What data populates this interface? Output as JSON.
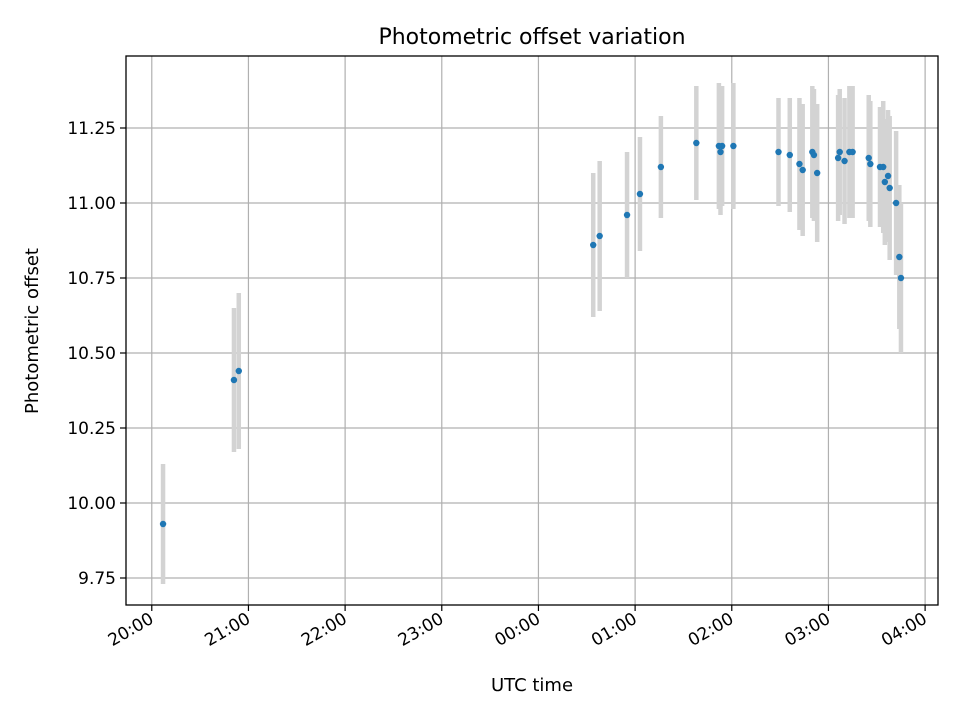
{
  "chart_data": {
    "type": "scatter",
    "title": "Photometric offset variation",
    "xlabel": "UTC time",
    "ylabel": "Photometric offset",
    "grid": true,
    "colors": {
      "point": "#1f77b4",
      "errorbar": "#d3d3d3"
    },
    "x_tick_labels": [
      "20:00",
      "21:00",
      "22:00",
      "23:00",
      "00:00",
      "01:00",
      "02:00",
      "03:00",
      "04:00"
    ],
    "y_tick_labels": [
      "9.75",
      "10.00",
      "10.25",
      "10.50",
      "10.75",
      "11.00",
      "11.25"
    ],
    "xlim": [
      "19:44",
      "04:08"
    ],
    "ylim": [
      9.66,
      11.49
    ],
    "points": [
      {
        "t": "20:07",
        "y": 9.93,
        "err": 0.2
      },
      {
        "t": "20:51",
        "y": 10.41,
        "err": 0.24
      },
      {
        "t": "20:54",
        "y": 10.44,
        "err": 0.26
      },
      {
        "t": "00:34",
        "y": 10.86,
        "err": 0.24
      },
      {
        "t": "00:38",
        "y": 10.89,
        "err": 0.25
      },
      {
        "t": "00:55",
        "y": 10.96,
        "err": 0.21
      },
      {
        "t": "01:03",
        "y": 11.03,
        "err": 0.19
      },
      {
        "t": "01:16",
        "y": 11.12,
        "err": 0.17
      },
      {
        "t": "01:38",
        "y": 11.2,
        "err": 0.19
      },
      {
        "t": "01:52",
        "y": 11.19,
        "err": 0.21
      },
      {
        "t": "01:53",
        "y": 11.17,
        "err": 0.21
      },
      {
        "t": "01:54",
        "y": 11.19,
        "err": 0.2
      },
      {
        "t": "02:01",
        "y": 11.19,
        "err": 0.21
      },
      {
        "t": "02:29",
        "y": 11.17,
        "err": 0.18
      },
      {
        "t": "02:36",
        "y": 11.16,
        "err": 0.19
      },
      {
        "t": "02:42",
        "y": 11.13,
        "err": 0.22
      },
      {
        "t": "02:44",
        "y": 11.11,
        "err": 0.22
      },
      {
        "t": "02:50",
        "y": 11.17,
        "err": 0.22
      },
      {
        "t": "02:51",
        "y": 11.16,
        "err": 0.22
      },
      {
        "t": "02:53",
        "y": 11.1,
        "err": 0.23
      },
      {
        "t": "03:06",
        "y": 11.15,
        "err": 0.21
      },
      {
        "t": "03:07",
        "y": 11.17,
        "err": 0.21
      },
      {
        "t": "03:10",
        "y": 11.14,
        "err": 0.21
      },
      {
        "t": "03:13",
        "y": 11.17,
        "err": 0.22
      },
      {
        "t": "03:15",
        "y": 11.17,
        "err": 0.22
      },
      {
        "t": "03:25",
        "y": 11.15,
        "err": 0.21
      },
      {
        "t": "03:26",
        "y": 11.13,
        "err": 0.21
      },
      {
        "t": "03:32",
        "y": 11.12,
        "err": 0.2
      },
      {
        "t": "03:34",
        "y": 11.12,
        "err": 0.22
      },
      {
        "t": "03:35",
        "y": 11.07,
        "err": 0.21
      },
      {
        "t": "03:37",
        "y": 11.09,
        "err": 0.22
      },
      {
        "t": "03:38",
        "y": 11.05,
        "err": 0.24
      },
      {
        "t": "03:42",
        "y": 11.0,
        "err": 0.24
      },
      {
        "t": "03:44",
        "y": 10.82,
        "err": 0.24
      },
      {
        "t": "03:45",
        "y": 10.75,
        "err": 0.25
      }
    ]
  }
}
